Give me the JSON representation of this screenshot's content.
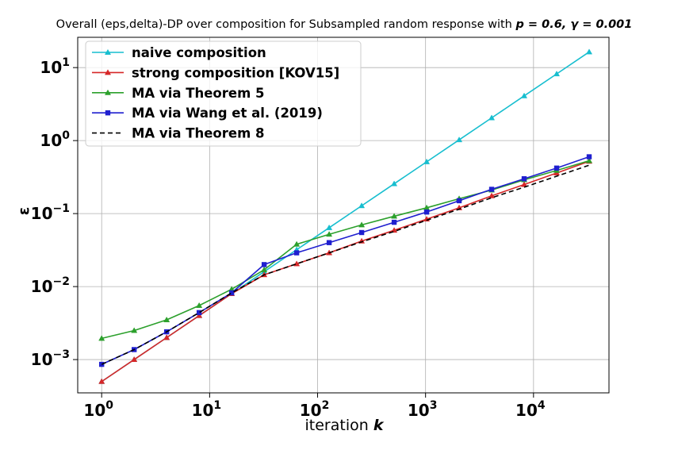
{
  "chart_data": {
    "type": "line",
    "title": "Overall (eps,delta)-DP over composition for Subsampled random response with",
    "title_params": "p = 0.6, γ = 0.001",
    "xlabel": "iteration",
    "xlabel_var": "k",
    "ylabel": "ε",
    "xscale": "log",
    "yscale": "log",
    "xlim": [
      0.6,
      50000
    ],
    "ylim": [
      0.00035,
      26
    ],
    "grid": true,
    "legend_position": "top-left",
    "x_ticks": [
      {
        "base": "10",
        "exp": "0",
        "value": 1
      },
      {
        "base": "10",
        "exp": "1",
        "value": 10
      },
      {
        "base": "10",
        "exp": "2",
        "value": 100
      },
      {
        "base": "10",
        "exp": "3",
        "value": 1000
      },
      {
        "base": "10",
        "exp": "4",
        "value": 10000
      }
    ],
    "y_ticks": [
      {
        "base": "10",
        "exp": "−3",
        "value": 0.001
      },
      {
        "base": "10",
        "exp": "−2",
        "value": 0.01
      },
      {
        "base": "10",
        "exp": "−1",
        "value": 0.1
      },
      {
        "base": "10",
        "exp": "0",
        "value": 1
      },
      {
        "base": "10",
        "exp": "1",
        "value": 10
      }
    ],
    "x": [
      1,
      2,
      4,
      8,
      16,
      32,
      64,
      128,
      256,
      512,
      1024,
      2048,
      4096,
      8192,
      16384,
      32768
    ],
    "series": [
      {
        "name": "naive composition",
        "color": "#17becf",
        "marker": "triangle",
        "dashed": false,
        "values": [
          0.0005,
          0.001,
          0.002,
          0.004,
          0.008,
          0.016,
          0.032,
          0.064,
          0.128,
          0.256,
          0.512,
          1.024,
          2.048,
          4.096,
          8.192,
          16.38
        ]
      },
      {
        "name": "strong composition [KOV15]",
        "color": "#d62728",
        "marker": "triangle",
        "dashed": false,
        "values": [
          0.0005,
          0.001,
          0.002,
          0.004,
          0.008,
          0.0145,
          0.0205,
          0.029,
          0.042,
          0.059,
          0.084,
          0.12,
          0.175,
          0.25,
          0.36,
          0.52
        ]
      },
      {
        "name": "MA via Theorem 5",
        "color": "#2ca02c",
        "marker": "triangle",
        "dashed": false,
        "values": [
          0.00195,
          0.0025,
          0.0035,
          0.0055,
          0.0092,
          0.017,
          0.038,
          0.052,
          0.07,
          0.092,
          0.12,
          0.16,
          0.21,
          0.29,
          0.39,
          0.53
        ]
      },
      {
        "name": "MA via Wang et al. (2019)",
        "color": "#1f1fcf",
        "marker": "square",
        "dashed": false,
        "values": [
          0.00086,
          0.00137,
          0.0024,
          0.0044,
          0.0082,
          0.02,
          0.029,
          0.04,
          0.055,
          0.076,
          0.105,
          0.15,
          0.215,
          0.3,
          0.42,
          0.6
        ]
      },
      {
        "name": "MA via Theorem 8",
        "color": "#000000",
        "marker": "none",
        "dashed": true,
        "values": [
          0.00086,
          0.00137,
          0.0024,
          0.0044,
          0.0082,
          0.0145,
          0.0205,
          0.029,
          0.041,
          0.057,
          0.081,
          0.115,
          0.165,
          0.23,
          0.325,
          0.46
        ]
      }
    ]
  }
}
